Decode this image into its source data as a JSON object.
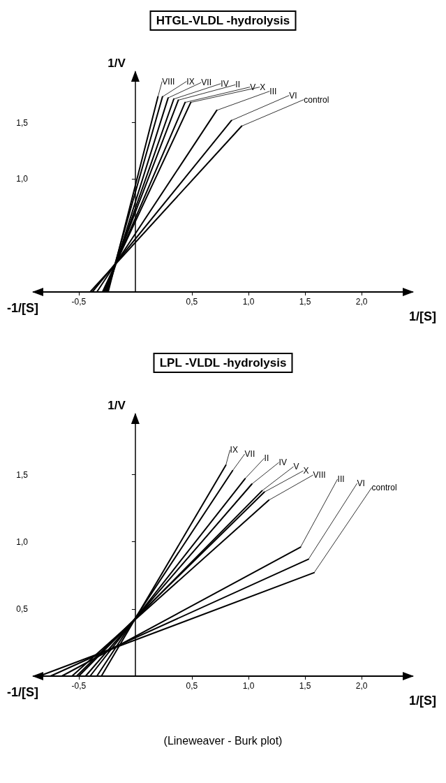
{
  "chart_data": [
    {
      "type": "line",
      "title": "HTGL-VLDL -hydrolysis",
      "xlabel": "1/[S]",
      "ylabel": "1/V",
      "annotations": [
        "-1/[S]"
      ],
      "xlim": [
        -0.9,
        2.45
      ],
      "ylim": [
        0,
        1.95
      ],
      "xticks": [
        {
          "value": -0.5,
          "label": "-0,5"
        },
        {
          "value": 0.5,
          "label": "0,5"
        },
        {
          "value": 1.0,
          "label": "1,0"
        },
        {
          "value": 1.5,
          "label": "1,5"
        },
        {
          "value": 2.0,
          "label": "2,0"
        }
      ],
      "yticks": [
        {
          "value": 1.0,
          "label": "1,0"
        },
        {
          "value": 1.5,
          "label": "1,5"
        }
      ],
      "grid": false,
      "legend": false,
      "line_style": "solid",
      "series": [
        {
          "name": "VIII",
          "color": "#000000",
          "x": [
            -0.24,
            0.2
          ],
          "values": [
            0,
            1.73
          ]
        },
        {
          "name": "IX",
          "color": "#000000",
          "x": [
            -0.25,
            0.24
          ],
          "values": [
            0,
            1.73
          ]
        },
        {
          "name": "VII",
          "color": "#000000",
          "x": [
            -0.25,
            0.29
          ],
          "values": [
            0,
            1.72
          ]
        },
        {
          "name": "IV",
          "color": "#000000",
          "x": [
            -0.26,
            0.34
          ],
          "values": [
            0,
            1.71
          ]
        },
        {
          "name": "II",
          "color": "#000000",
          "x": [
            -0.27,
            0.38
          ],
          "values": [
            0,
            1.7
          ]
        },
        {
          "name": "V",
          "color": "#000000",
          "x": [
            -0.28,
            0.44
          ],
          "values": [
            0,
            1.68
          ]
        },
        {
          "name": "X",
          "color": "#000000",
          "x": [
            -0.29,
            0.49
          ],
          "values": [
            0,
            1.68
          ]
        },
        {
          "name": "III",
          "color": "#000000",
          "x": [
            -0.34,
            0.72
          ],
          "values": [
            0,
            1.61
          ]
        },
        {
          "name": "VI",
          "color": "#000000",
          "x": [
            -0.38,
            0.85
          ],
          "values": [
            0,
            1.52
          ]
        },
        {
          "name": "control",
          "color": "#000000",
          "x": [
            -0.4,
            0.94
          ],
          "values": [
            0,
            1.47
          ]
        }
      ]
    },
    {
      "type": "line",
      "title": "LPL -VLDL -hydrolysis",
      "xlabel": "1/[S]",
      "ylabel": "1/V",
      "annotations": [
        "-1/[S]",
        "(Lineweaver - Burk plot)"
      ],
      "xlim": [
        -0.9,
        2.45
      ],
      "ylim": [
        0,
        1.95
      ],
      "xticks": [
        {
          "value": -0.5,
          "label": "-0,5"
        },
        {
          "value": 0.5,
          "label": "0,5"
        },
        {
          "value": 1.0,
          "label": "1,0"
        },
        {
          "value": 1.5,
          "label": "1,5"
        },
        {
          "value": 2.0,
          "label": "2,0"
        }
      ],
      "yticks": [
        {
          "value": 0.5,
          "label": "0,5"
        },
        {
          "value": 1.0,
          "label": "1,0"
        },
        {
          "value": 1.5,
          "label": "1,5"
        }
      ],
      "grid": false,
      "legend": false,
      "line_style": "solid",
      "series": [
        {
          "name": "IX",
          "color": "#000000",
          "x": [
            -0.3,
            0.8
          ],
          "values": [
            0,
            1.57
          ]
        },
        {
          "name": "VII",
          "color": "#000000",
          "x": [
            -0.34,
            0.86
          ],
          "values": [
            0,
            1.53
          ]
        },
        {
          "name": "II",
          "color": "#000000",
          "x": [
            -0.4,
            0.97
          ],
          "values": [
            0,
            1.47
          ]
        },
        {
          "name": "IV",
          "color": "#000000",
          "x": [
            -0.44,
            1.03
          ],
          "values": [
            0,
            1.43
          ]
        },
        {
          "name": "V",
          "color": "#000000",
          "x": [
            -0.5,
            1.12
          ],
          "values": [
            0,
            1.38
          ]
        },
        {
          "name": "X",
          "color": "#000000",
          "x": [
            -0.52,
            1.14
          ],
          "values": [
            0,
            1.37
          ]
        },
        {
          "name": "VIII",
          "color": "#000000",
          "x": [
            -0.56,
            1.18
          ],
          "values": [
            0,
            1.31
          ]
        },
        {
          "name": "III",
          "color": "#000000",
          "x": [
            -0.65,
            1.46
          ],
          "values": [
            0,
            0.96
          ]
        },
        {
          "name": "VI",
          "color": "#000000",
          "x": [
            -0.75,
            1.53
          ],
          "values": [
            0,
            0.87
          ]
        },
        {
          "name": "control",
          "color": "#000000",
          "x": [
            -0.85,
            1.58
          ],
          "values": [
            0,
            0.77
          ]
        }
      ]
    }
  ]
}
